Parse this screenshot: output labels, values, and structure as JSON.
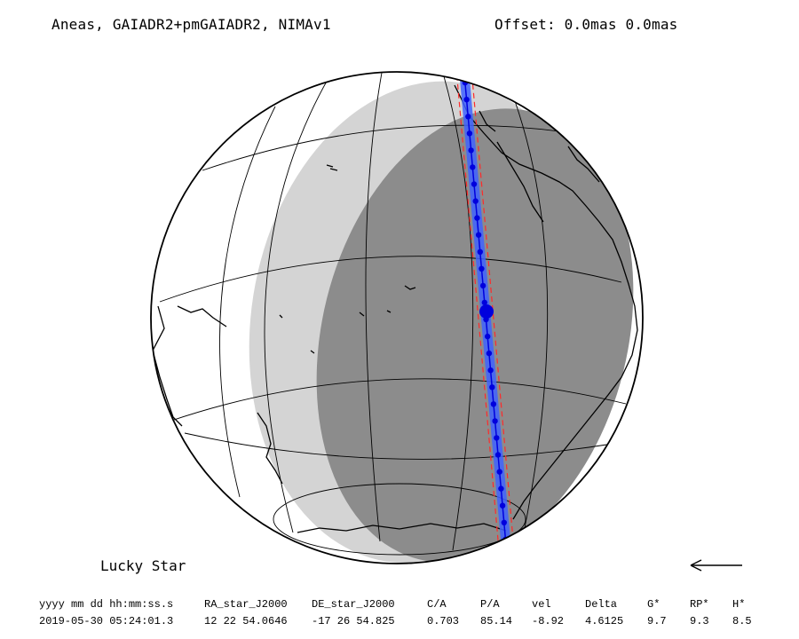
{
  "header": {
    "title": "Aneas, GAIADR2+pmGAIADR2, NIMAv1",
    "offset": "Offset: 0.0mas 0.0mas"
  },
  "map": {
    "projection": "orthographic",
    "colors": {
      "penumbra": "#d4d4d4",
      "night": "#8c8c8c",
      "shadow_path": "#3f63ff",
      "path_center": "#0000dd",
      "path_limits": "#ff2a2a",
      "coastline": "#000000"
    }
  },
  "footer": {
    "label": "Lucky Star",
    "arrow_icon": "left-arrow-icon"
  },
  "ephemeris": {
    "headers": [
      "yyyy mm dd hh:mm:ss.s",
      "RA_star_J2000",
      "DE_star_J2000",
      "C/A",
      "P/A",
      "vel",
      "Delta",
      "G*",
      "RP*",
      "H*"
    ],
    "values": [
      "2019-05-30 05:24:01.3",
      "12 22 54.0646",
      "-17 26 54.825",
      "0.703",
      "85.14",
      "-8.92",
      "4.6125",
      "9.7",
      "9.3",
      "8.5"
    ]
  }
}
